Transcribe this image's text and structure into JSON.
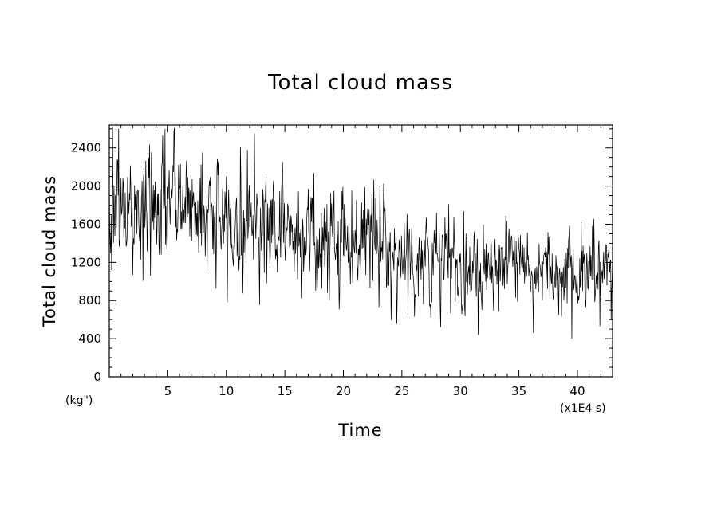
{
  "chart_data": {
    "type": "line",
    "title": "Total cloud mass",
    "xlabel": "Time",
    "ylabel": "Total cloud mass",
    "x_unit": "(x1E4 s)",
    "y_unit": "(kg\")",
    "xlim": [
      0,
      43
    ],
    "ylim": [
      0,
      2640
    ],
    "x_ticks": [
      5,
      10,
      15,
      20,
      25,
      30,
      35,
      40
    ],
    "y_ticks": [
      0,
      400,
      800,
      1200,
      1600,
      2000,
      2400
    ],
    "grid": false,
    "legend": "none",
    "line_color": "#000000",
    "trend": {
      "x": [
        0,
        2.5,
        5,
        7.5,
        10,
        12.5,
        15,
        17.5,
        20,
        22.5,
        24,
        25,
        27.5,
        30,
        32.5,
        35,
        37.5,
        40,
        43
      ],
      "y": [
        1750,
        1700,
        1850,
        1800,
        1550,
        1650,
        1600,
        1400,
        1450,
        1500,
        1350,
        1250,
        1200,
        1150,
        1250,
        1150,
        1150,
        1100,
        1100
      ]
    },
    "amplitude": {
      "x": [
        0,
        10,
        20,
        24,
        30,
        35,
        43
      ],
      "y": [
        350,
        330,
        300,
        300,
        290,
        230,
        210
      ]
    },
    "sample_step": 0.04,
    "extremes": [
      {
        "x": 0.3,
        "y": 2620
      },
      {
        "x": 0.8,
        "y": 2600
      },
      {
        "x": 12.4,
        "y": 2550
      },
      {
        "x": 28.3,
        "y": 520
      },
      {
        "x": 31.5,
        "y": 440
      },
      {
        "x": 39.5,
        "y": 400
      },
      {
        "x": 41.9,
        "y": 530
      }
    ]
  }
}
